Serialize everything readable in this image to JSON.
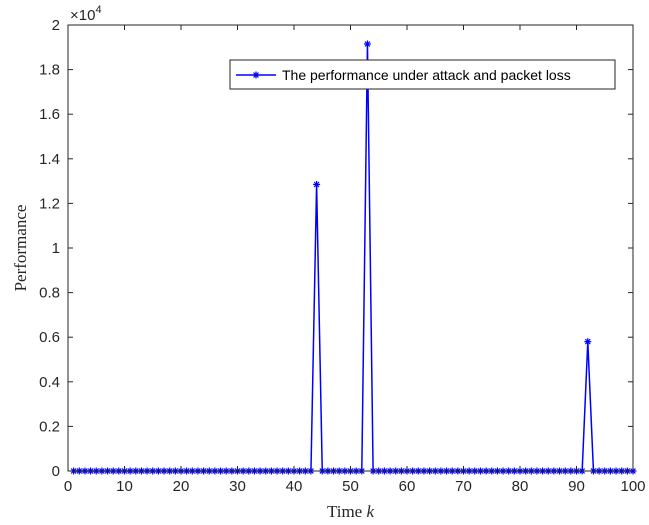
{
  "chart_data": {
    "type": "line",
    "xlabel_prefix": "Time",
    "xlabel_var": "k",
    "ylabel": "Performance",
    "y_multiplier_base": "×10",
    "y_multiplier_exp": "4",
    "xlim": [
      0,
      100
    ],
    "ylim": [
      0,
      20000
    ],
    "x_ticks": [
      0,
      10,
      20,
      30,
      40,
      50,
      60,
      70,
      80,
      90,
      100
    ],
    "x_tick_labels": [
      "0",
      "10",
      "20",
      "30",
      "40",
      "50",
      "60",
      "70",
      "80",
      "90",
      "100"
    ],
    "y_ticks": [
      0,
      2000,
      4000,
      6000,
      8000,
      10000,
      12000,
      14000,
      16000,
      18000,
      20000
    ],
    "y_tick_labels": [
      "0",
      "0.2",
      "0.4",
      "0.6",
      "0.8",
      "1",
      "1.2",
      "1.4",
      "1.6",
      "1.8",
      "2"
    ],
    "grid": false,
    "legend_position": "top-right",
    "series": [
      {
        "name": "The performance under attack and packet loss",
        "color": "#0000ff",
        "marker": "asterisk",
        "x": [
          1,
          2,
          3,
          4,
          5,
          6,
          7,
          8,
          9,
          10,
          11,
          12,
          13,
          14,
          15,
          16,
          17,
          18,
          19,
          20,
          21,
          22,
          23,
          24,
          25,
          26,
          27,
          28,
          29,
          30,
          31,
          32,
          33,
          34,
          35,
          36,
          37,
          38,
          39,
          40,
          41,
          42,
          43,
          44,
          45,
          46,
          47,
          48,
          49,
          50,
          51,
          52,
          53,
          54,
          55,
          56,
          57,
          58,
          59,
          60,
          61,
          62,
          63,
          64,
          65,
          66,
          67,
          68,
          69,
          70,
          71,
          72,
          73,
          74,
          75,
          76,
          77,
          78,
          79,
          80,
          81,
          82,
          83,
          84,
          85,
          86,
          87,
          88,
          89,
          90,
          91,
          92,
          93,
          94,
          95,
          96,
          97,
          98,
          99,
          100
        ],
        "y": [
          0,
          0,
          0,
          0,
          0,
          0,
          0,
          0,
          0,
          0,
          0,
          0,
          0,
          0,
          0,
          0,
          0,
          0,
          0,
          0,
          0,
          0,
          0,
          0,
          0,
          0,
          0,
          0,
          0,
          0,
          0,
          0,
          0,
          0,
          0,
          0,
          0,
          0,
          0,
          0,
          0,
          0,
          0,
          12850,
          0,
          0,
          0,
          0,
          0,
          0,
          0,
          0,
          19150,
          0,
          0,
          0,
          0,
          0,
          0,
          0,
          0,
          0,
          0,
          0,
          0,
          0,
          0,
          0,
          0,
          0,
          0,
          0,
          0,
          0,
          0,
          0,
          0,
          0,
          0,
          0,
          0,
          0,
          0,
          0,
          0,
          0,
          0,
          0,
          0,
          0,
          0,
          5800,
          0,
          0,
          0,
          0,
          0,
          0,
          0,
          0
        ]
      }
    ]
  }
}
